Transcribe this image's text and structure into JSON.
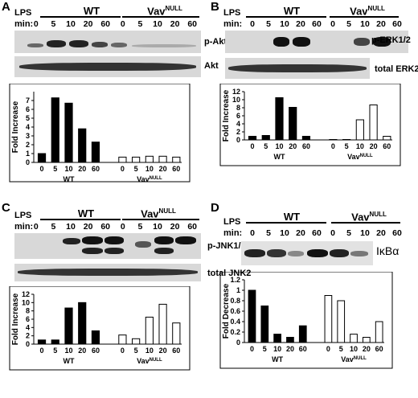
{
  "header": {
    "lps": "LPS",
    "min": "min:",
    "wt": "WT",
    "vav": "Vav",
    "vav_sup": "NULL"
  },
  "timepoints": [
    "0",
    "5",
    "10",
    "20",
    "60"
  ],
  "panels": {
    "A": {
      "letter": "A",
      "blots": [
        "p-Akt",
        "Akt"
      ]
    },
    "B": {
      "letter": "B",
      "blots": [
        "p-ERK1/2",
        "total ERK2"
      ]
    },
    "C": {
      "letter": "C",
      "blots": [
        "p-JNK1/2",
        "total JNK2"
      ]
    },
    "D": {
      "letter": "D",
      "blots": [
        "IκBα"
      ]
    }
  },
  "chart_data": [
    {
      "panel": "A",
      "type": "bar",
      "ylabel": "Fold Increase",
      "ylim": [
        0,
        8
      ],
      "yticks": [
        0,
        1,
        2,
        3,
        4,
        5,
        6,
        7
      ],
      "groups": [
        {
          "name": "WT",
          "values": [
            1,
            7.3,
            6.7,
            3.8,
            2.3
          ]
        },
        {
          "name": "Vav NULL",
          "values": [
            0.6,
            0.6,
            0.7,
            0.7,
            0.6
          ]
        }
      ]
    },
    {
      "panel": "B",
      "type": "bar",
      "ylabel": "Fold Increase",
      "ylim": [
        0,
        12
      ],
      "yticks": [
        0,
        2,
        4,
        6,
        8,
        10,
        12
      ],
      "groups": [
        {
          "name": "WT",
          "values": [
            0.9,
            1.1,
            10.5,
            8.1,
            0.9
          ]
        },
        {
          "name": "Vav NULL",
          "values": [
            0.1,
            0.1,
            5.0,
            8.7,
            0.9
          ]
        }
      ]
    },
    {
      "panel": "C",
      "type": "bar",
      "ylabel": "Fold Increase",
      "ylim": [
        0,
        12
      ],
      "yticks": [
        0,
        2,
        4,
        6,
        8,
        10,
        12
      ],
      "groups": [
        {
          "name": "WT",
          "values": [
            1,
            1,
            8.7,
            10,
            3.2
          ]
        },
        {
          "name": "Vav NULL",
          "values": [
            2.2,
            1.3,
            6.5,
            9.6,
            5.1
          ]
        }
      ]
    },
    {
      "panel": "D",
      "type": "bar",
      "ylabel": "Fold Decrease",
      "ylim": [
        0,
        1.2
      ],
      "yticks": [
        "0",
        "0.2",
        "0.4",
        "0.6",
        "0.8",
        "1",
        "1.2"
      ],
      "groups": [
        {
          "name": "WT",
          "values": [
            1.0,
            0.7,
            0.16,
            0.1,
            0.32
          ]
        },
        {
          "name": "Vav NULL",
          "values": [
            0.9,
            0.8,
            0.16,
            0.1,
            0.4
          ]
        }
      ]
    }
  ]
}
